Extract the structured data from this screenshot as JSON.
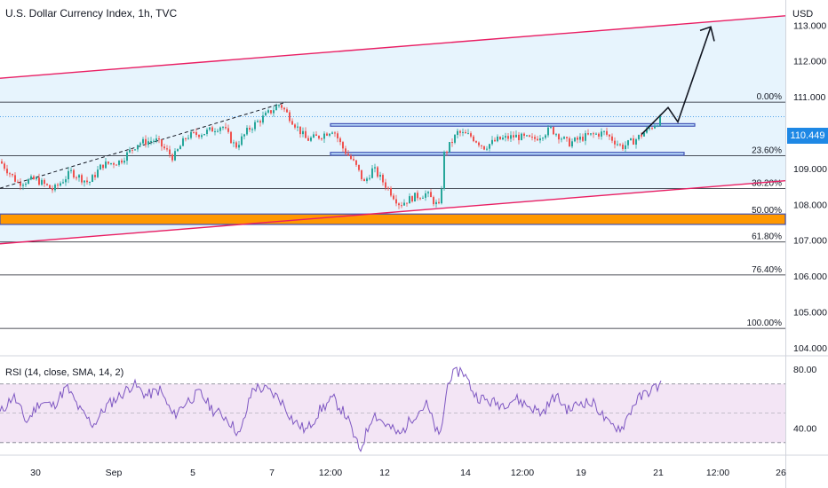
{
  "header": {
    "title": "U.S. Dollar Currency Index, 1h, TVC"
  },
  "currency_label": "USD",
  "current_price": "110.449",
  "rsi_label": "RSI (14, close, SMA, 14, 2)",
  "colors": {
    "up": "#26a69a",
    "down": "#ef5350",
    "channel_line": "#e91e63",
    "channel_fill": "#e3f2fd",
    "fib_line": "#131722",
    "rect_blue": "#3f51b5",
    "zone_orange": "#ff9800",
    "rsi_line": "#7e57c2",
    "rsi_band": "#f3e5f5",
    "accent": "#1e88e5"
  },
  "chart_data": [
    {
      "type": "candlestick",
      "title": "U.S. Dollar Currency Index, 1h, TVC",
      "ylabel": "USD",
      "ylim": [
        103.8,
        113.7
      ],
      "yticks": [
        "113.000",
        "112.000",
        "111.000",
        "110.000",
        "109.000",
        "108.000",
        "107.000",
        "106.000",
        "105.000",
        "104.000"
      ],
      "xticks": [
        "30",
        "Sep",
        "5",
        "7",
        "12:00",
        "12",
        "14",
        "12:00",
        "19",
        "21",
        "12:00",
        "26"
      ],
      "fib_levels": [
        {
          "label": "0.00%",
          "price": 110.85
        },
        {
          "label": "23.60%",
          "price": 109.36
        },
        {
          "label": "38.20%",
          "price": 108.44
        },
        {
          "label": "50.00%",
          "price": 107.69
        },
        {
          "label": "61.80%",
          "price": 106.95
        },
        {
          "label": "76.40%",
          "price": 106.03
        },
        {
          "label": "100.00%",
          "price": 104.54
        }
      ],
      "annotations": {
        "channel_upper": [
          [
            -60,
            111.4
          ],
          [
            880,
            113.25
          ]
        ],
        "channel_lower": [
          [
            0,
            106.9
          ],
          [
            880,
            108.65
          ]
        ],
        "resistance_box": [
          110.25,
          110.18
        ],
        "support_box": [
          109.45,
          109.37
        ],
        "demand_zone": [
          107.73,
          107.44
        ],
        "projection": [
          [
            109.95
          ],
          [
            110.7
          ],
          [
            110.3
          ],
          [
            112.95
          ]
        ]
      },
      "price_path": [
        [
          0,
          109.2
        ],
        [
          20,
          108.6
        ],
        [
          40,
          108.7
        ],
        [
          60,
          108.4
        ],
        [
          80,
          108.9
        ],
        [
          100,
          108.6
        ],
        [
          115,
          109.1
        ],
        [
          135,
          109.2
        ],
        [
          155,
          109.7
        ],
        [
          175,
          109.8
        ],
        [
          195,
          109.3
        ],
        [
          210,
          109.9
        ],
        [
          230,
          110.0
        ],
        [
          250,
          110.2
        ],
        [
          265,
          109.6
        ],
        [
          280,
          110.1
        ],
        [
          300,
          110.5
        ],
        [
          315,
          110.8
        ],
        [
          330,
          110.3
        ],
        [
          345,
          109.8
        ],
        [
          360,
          109.9
        ],
        [
          375,
          110.1
        ],
        [
          385,
          109.6
        ],
        [
          400,
          109.1
        ],
        [
          410,
          108.6
        ],
        [
          420,
          109.0
        ],
        [
          435,
          108.5
        ],
        [
          450,
          108.0
        ],
        [
          465,
          108.2
        ],
        [
          480,
          108.3
        ],
        [
          495,
          107.9
        ],
        [
          500,
          109.4
        ],
        [
          515,
          110.0
        ],
        [
          530,
          109.9
        ],
        [
          545,
          109.6
        ],
        [
          560,
          109.8
        ],
        [
          580,
          109.9
        ],
        [
          600,
          109.8
        ],
        [
          620,
          110.1
        ],
        [
          640,
          109.7
        ],
        [
          660,
          109.9
        ],
        [
          680,
          110.0
        ],
        [
          700,
          109.6
        ],
        [
          715,
          109.8
        ],
        [
          730,
          110.1
        ],
        [
          745,
          110.4
        ]
      ],
      "price_current": 110.449
    },
    {
      "type": "line",
      "title": "RSI (14, close, SMA, 14, 2)",
      "ylim": [
        22,
        88
      ],
      "yticks": [
        "80.00",
        "40.00"
      ],
      "levels": [
        70,
        30
      ],
      "rsi": [
        [
          0,
          50
        ],
        [
          15,
          62
        ],
        [
          30,
          44
        ],
        [
          45,
          58
        ],
        [
          60,
          55
        ],
        [
          75,
          68
        ],
        [
          90,
          52
        ],
        [
          105,
          42
        ],
        [
          120,
          55
        ],
        [
          135,
          62
        ],
        [
          150,
          70
        ],
        [
          165,
          62
        ],
        [
          180,
          66
        ],
        [
          195,
          48
        ],
        [
          210,
          58
        ],
        [
          225,
          64
        ],
        [
          240,
          52
        ],
        [
          255,
          47
        ],
        [
          270,
          35
        ],
        [
          285,
          68
        ],
        [
          300,
          66
        ],
        [
          315,
          60
        ],
        [
          330,
          45
        ],
        [
          345,
          38
        ],
        [
          360,
          52
        ],
        [
          375,
          60
        ],
        [
          390,
          48
        ],
        [
          405,
          24
        ],
        [
          420,
          50
        ],
        [
          435,
          42
        ],
        [
          450,
          35
        ],
        [
          465,
          48
        ],
        [
          480,
          56
        ],
        [
          495,
          32
        ],
        [
          505,
          74
        ],
        [
          520,
          80
        ],
        [
          535,
          62
        ],
        [
          550,
          58
        ],
        [
          565,
          56
        ],
        [
          580,
          60
        ],
        [
          595,
          55
        ],
        [
          610,
          50
        ],
        [
          625,
          62
        ],
        [
          640,
          52
        ],
        [
          655,
          58
        ],
        [
          670,
          56
        ],
        [
          685,
          42
        ],
        [
          700,
          40
        ],
        [
          715,
          58
        ],
        [
          730,
          65
        ],
        [
          745,
          70
        ]
      ]
    }
  ]
}
